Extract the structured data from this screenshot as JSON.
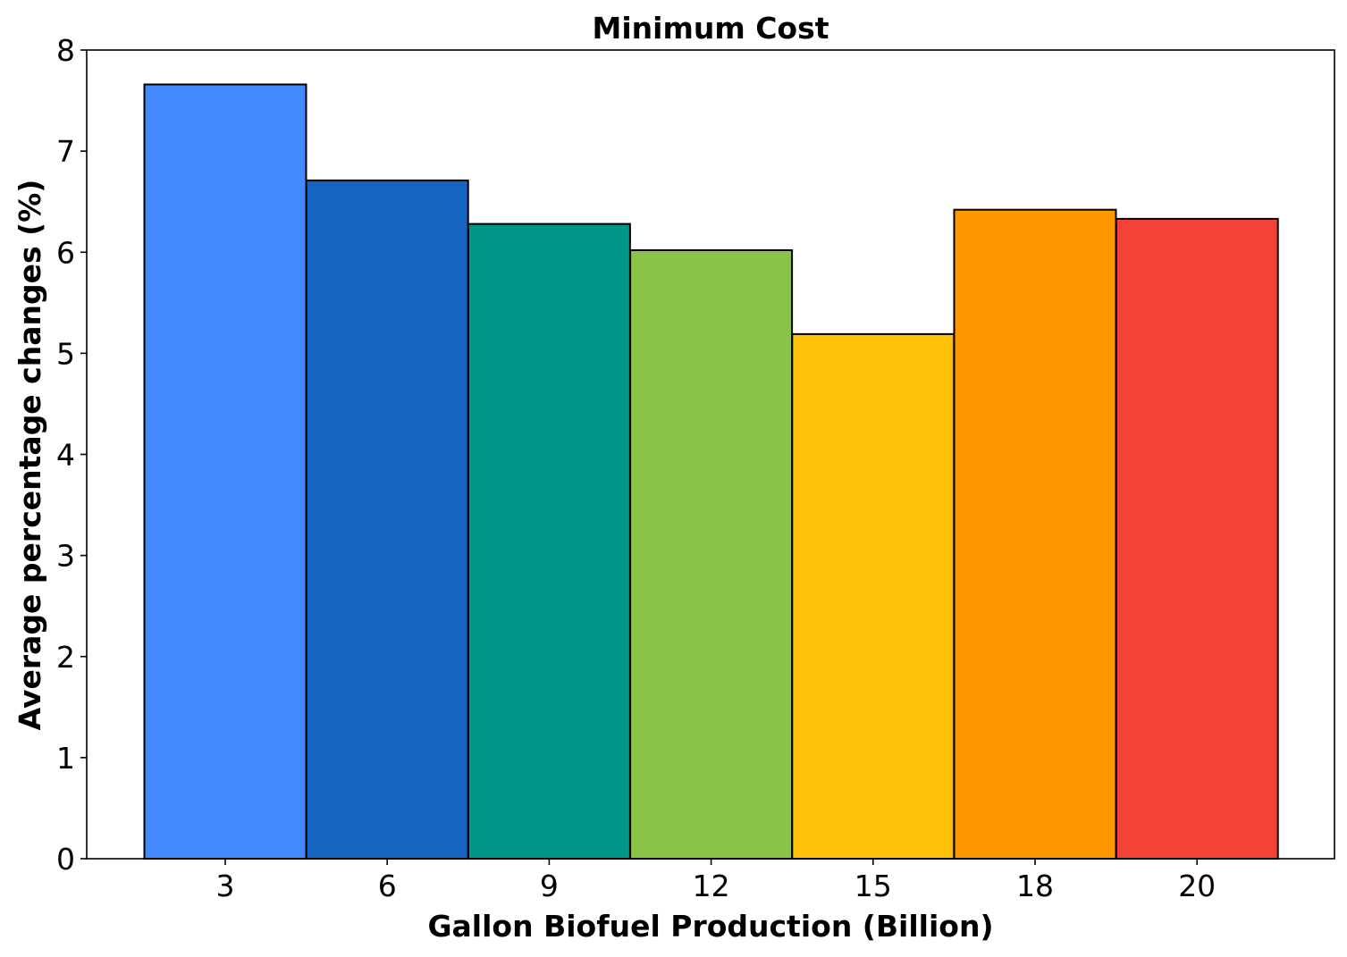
{
  "chart_data": {
    "type": "bar",
    "title": "Minimum Cost",
    "xlabel": "Gallon Biofuel Production (Billion)",
    "ylabel": "Average percentage changes (%)",
    "categories": [
      "3",
      "6",
      "9",
      "12",
      "15",
      "18",
      "20"
    ],
    "values": [
      7.66,
      6.71,
      6.28,
      6.02,
      5.19,
      6.42,
      6.33
    ],
    "colors": [
      "#448AFF",
      "#1565C0",
      "#009688",
      "#8BC34A",
      "#FFC107",
      "#FF9800",
      "#F44336"
    ],
    "ylim": [
      0,
      8
    ],
    "yticks": [
      "0",
      "1",
      "2",
      "3",
      "4",
      "5",
      "6",
      "7",
      "8"
    ],
    "grid": false,
    "legend": "none"
  }
}
